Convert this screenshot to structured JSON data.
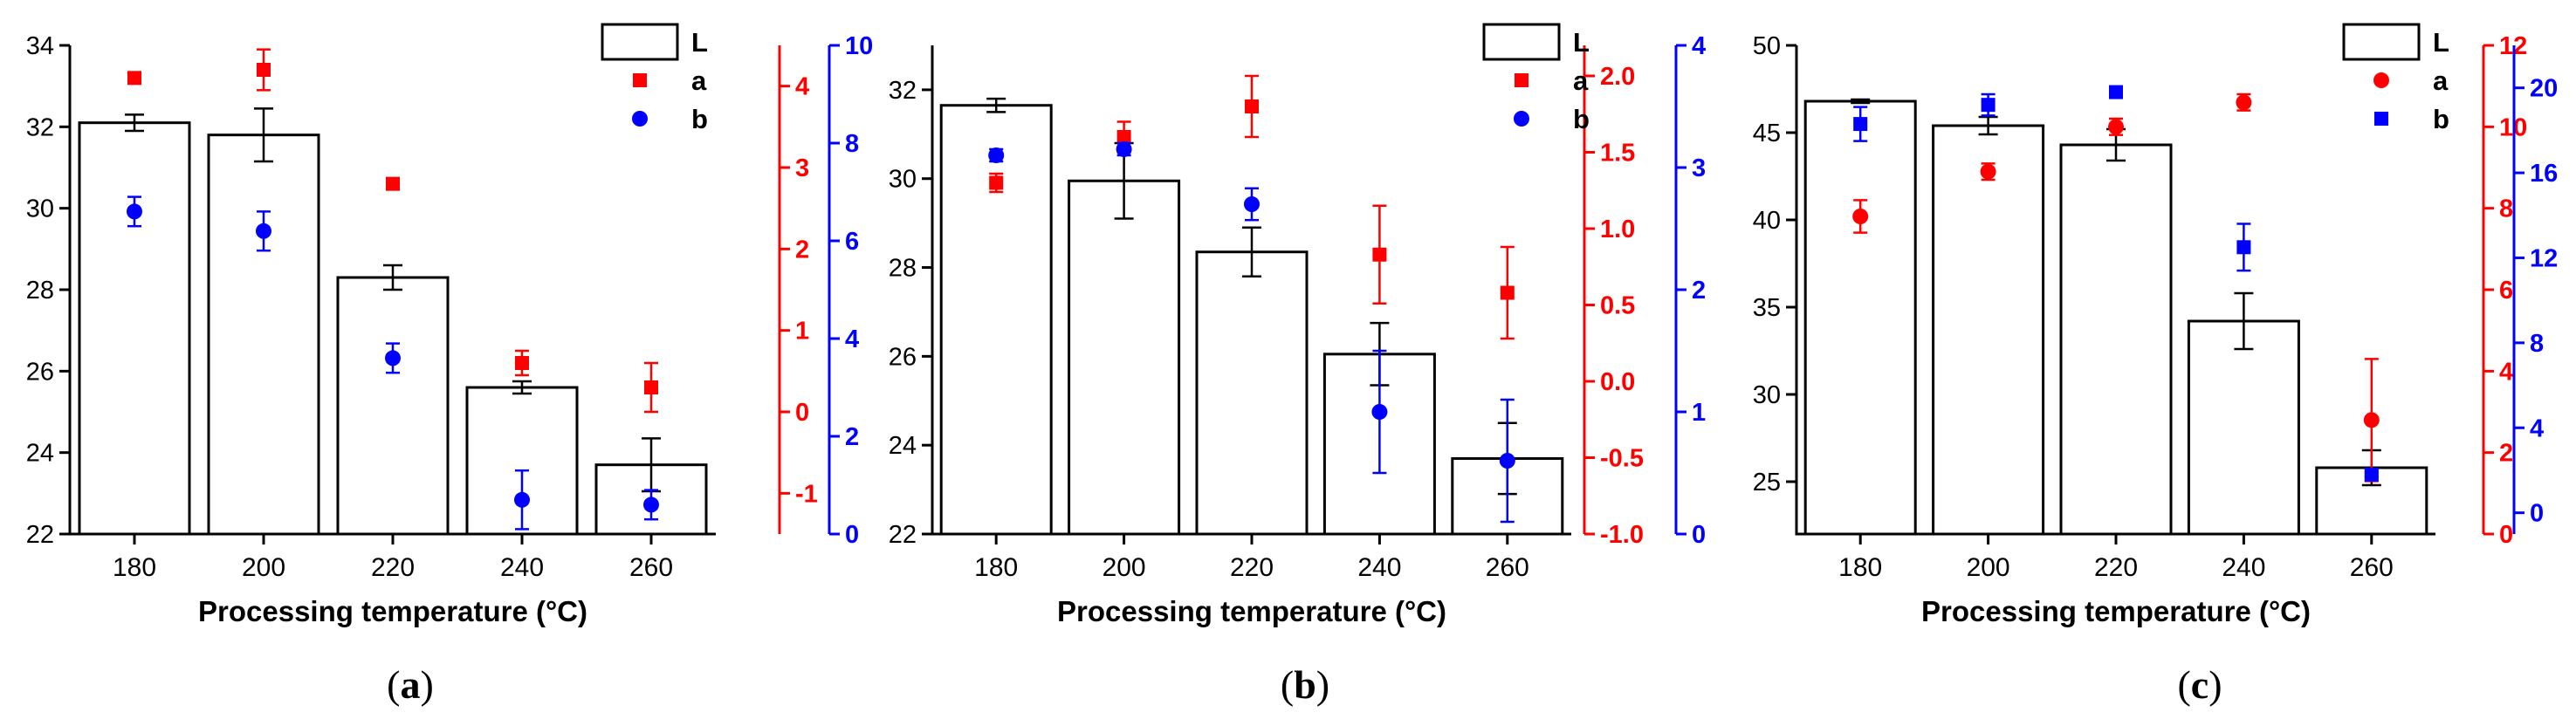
{
  "chart_data": [
    {
      "type": "bar",
      "panel_label": "a",
      "xlabel": "Processing temperature (°C)",
      "categories": [
        "180",
        "200",
        "220",
        "240",
        "260"
      ],
      "left_axis": {
        "range": [
          22,
          34
        ],
        "ticks": [
          22,
          24,
          26,
          28,
          30,
          32,
          34
        ],
        "tick_labels": [
          "22",
          "24",
          "26",
          "28",
          "30",
          "32",
          "34"
        ],
        "color": "#000000"
      },
      "right_axes": [
        {
          "name": "a",
          "range": [
            -1.5,
            4.5
          ],
          "ticks": [
            -1,
            0,
            1,
            2,
            3,
            4
          ],
          "tick_labels": [
            "-1",
            "0",
            "1",
            "2",
            "3",
            "4"
          ],
          "color": "#ff0000"
        },
        {
          "name": "b",
          "range": [
            0,
            10
          ],
          "ticks": [
            0,
            2,
            4,
            6,
            8,
            10
          ],
          "tick_labels": [
            "0",
            "2",
            "4",
            "6",
            "8",
            "10"
          ],
          "color": "#0000ff"
        }
      ],
      "series": [
        {
          "name": "L",
          "kind": "bar",
          "axis": "left",
          "color": "#000000",
          "values": [
            32.1,
            31.8,
            28.3,
            25.6,
            23.7
          ],
          "errors": [
            0.2,
            0.65,
            0.3,
            0.15,
            0.65
          ]
        },
        {
          "name": "a",
          "kind": "scatter",
          "marker": "square",
          "axis": 0,
          "color": "#ff0000",
          "values": [
            4.1,
            4.2,
            2.8,
            0.6,
            0.3
          ],
          "errors": [
            0,
            0.25,
            0,
            0.15,
            0.3
          ]
        },
        {
          "name": "b",
          "kind": "scatter",
          "marker": "circle",
          "axis": 1,
          "color": "#0000ff",
          "values": [
            6.6,
            6.2,
            3.6,
            0.7,
            0.6
          ],
          "errors": [
            0.3,
            0.4,
            0.3,
            0.6,
            0.3
          ]
        }
      ],
      "legend": {
        "position": "top-right",
        "labels": [
          "L",
          "a",
          "b"
        ]
      }
    },
    {
      "type": "bar",
      "panel_label": "b",
      "xlabel": "Processing temperature (°C)",
      "categories": [
        "180",
        "200",
        "220",
        "240",
        "260"
      ],
      "left_axis": {
        "range": [
          22,
          33
        ],
        "ticks": [
          22,
          24,
          26,
          28,
          30,
          32
        ],
        "tick_labels": [
          "22",
          "24",
          "26",
          "28",
          "30",
          "32"
        ],
        "color": "#000000"
      },
      "right_axes": [
        {
          "name": "a",
          "range": [
            -1.0,
            2.2
          ],
          "ticks": [
            -1.0,
            -0.5,
            0.0,
            0.5,
            1.0,
            1.5,
            2.0
          ],
          "tick_labels": [
            "-1.0",
            "-0.5",
            "0.0",
            "0.5",
            "1.0",
            "1.5",
            "2.0"
          ],
          "color": "#ff0000"
        },
        {
          "name": "b",
          "range": [
            0,
            4
          ],
          "ticks": [
            0,
            1,
            2,
            3,
            4
          ],
          "tick_labels": [
            "0",
            "1",
            "2",
            "3",
            "4"
          ],
          "color": "#0000ff"
        }
      ],
      "series": [
        {
          "name": "L",
          "kind": "bar",
          "axis": "left",
          "color": "#000000",
          "values": [
            31.65,
            29.95,
            28.35,
            26.05,
            23.7
          ],
          "errors": [
            0.15,
            0.85,
            0.55,
            0.7,
            0.8
          ]
        },
        {
          "name": "a",
          "kind": "scatter",
          "marker": "square",
          "axis": 0,
          "color": "#ff0000",
          "values": [
            1.3,
            1.6,
            1.8,
            0.83,
            0.58
          ],
          "errors": [
            0.06,
            0.1,
            0.2,
            0.32,
            0.3
          ]
        },
        {
          "name": "b",
          "kind": "scatter",
          "marker": "circle",
          "axis": 1,
          "color": "#0000ff",
          "values": [
            3.1,
            3.15,
            2.7,
            1.0,
            0.6
          ],
          "errors": [
            0.05,
            0.05,
            0.13,
            0.5,
            0.5
          ]
        }
      ],
      "legend": {
        "position": "top-right",
        "labels": [
          "L",
          "a",
          "b"
        ]
      }
    },
    {
      "type": "bar",
      "panel_label": "c",
      "xlabel": "Processing temperature (°C)",
      "categories": [
        "180",
        "200",
        "220",
        "240",
        "260"
      ],
      "left_axis": {
        "range": [
          22,
          50
        ],
        "ticks": [
          25,
          30,
          35,
          40,
          45,
          50
        ],
        "tick_labels": [
          "25",
          "30",
          "35",
          "40",
          "45",
          "50"
        ],
        "color": "#000000"
      },
      "right_axes": [
        {
          "name": "a",
          "range": [
            0,
            12
          ],
          "ticks": [
            0,
            2,
            4,
            6,
            8,
            10,
            12
          ],
          "tick_labels": [
            "0",
            "2",
            "4",
            "6",
            "8",
            "10",
            "12"
          ],
          "color": "#ff0000"
        },
        {
          "name": "b",
          "range": [
            -1,
            22
          ],
          "ticks": [
            0,
            4,
            8,
            12,
            16,
            20
          ],
          "tick_labels": [
            "0",
            "4",
            "8",
            "12",
            "16",
            "20"
          ],
          "color": "#0000ff"
        }
      ],
      "series": [
        {
          "name": "L",
          "kind": "bar",
          "axis": "left",
          "color": "#000000",
          "values": [
            46.8,
            45.4,
            44.3,
            34.2,
            25.8
          ],
          "errors": [
            0.1,
            0.5,
            0.9,
            1.6,
            1.0
          ]
        },
        {
          "name": "a",
          "kind": "scatter",
          "marker": "circle",
          "axis": 0,
          "color": "#ff0000",
          "values": [
            7.8,
            8.9,
            10.0,
            10.6,
            2.8
          ],
          "errors": [
            0.4,
            0.2,
            0.2,
            0.2,
            1.5
          ]
        },
        {
          "name": "b",
          "kind": "scatter",
          "marker": "square",
          "axis": 1,
          "color": "#0000ff",
          "values": [
            18.3,
            19.2,
            19.8,
            12.5,
            1.8
          ],
          "errors": [
            0.8,
            0.5,
            0.2,
            1.1,
            0.1
          ]
        }
      ],
      "legend": {
        "position": "top-right",
        "labels": [
          "L",
          "a",
          "b"
        ]
      }
    }
  ]
}
